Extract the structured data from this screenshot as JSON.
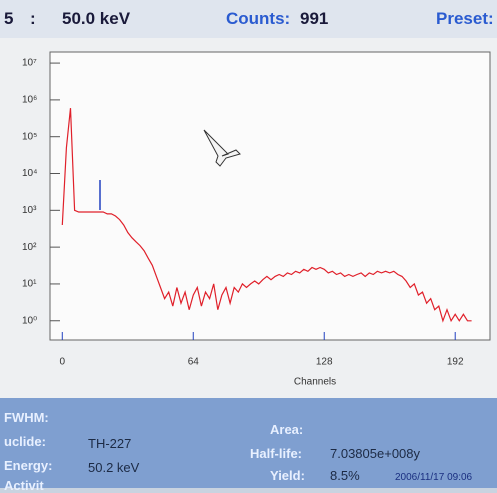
{
  "header": {
    "channel": "5",
    "separator": ":",
    "energy": "50.0 keV",
    "counts_label": "Counts:",
    "counts": "991",
    "preset": "Preset:"
  },
  "chart_data": {
    "type": "line",
    "xlabel": "Channels",
    "color": "#e0202a",
    "log_y": true,
    "x": [
      0,
      2,
      4,
      6,
      8,
      10,
      12,
      14,
      16,
      18,
      20,
      22,
      24,
      26,
      28,
      30,
      32,
      34,
      36,
      38,
      40,
      42,
      44,
      46,
      48,
      50,
      52,
      54,
      56,
      58,
      60,
      62,
      64,
      66,
      68,
      70,
      72,
      74,
      76,
      78,
      80,
      82,
      84,
      86,
      88,
      90,
      92,
      94,
      96,
      98,
      100,
      102,
      104,
      106,
      108,
      110,
      112,
      114,
      116,
      118,
      120,
      122,
      124,
      126,
      128,
      130,
      132,
      134,
      136,
      138,
      140,
      142,
      144,
      146,
      148,
      150,
      152,
      154,
      156,
      158,
      160,
      162,
      164,
      166,
      168,
      170,
      172,
      174,
      176,
      178,
      180,
      182,
      184,
      186,
      188,
      190,
      192,
      194,
      196,
      198,
      200
    ],
    "values": [
      400,
      50000,
      600000,
      1000,
      900,
      900,
      900,
      900,
      900,
      900,
      900,
      800,
      800,
      700,
      560,
      400,
      250,
      180,
      140,
      110,
      80,
      50,
      32,
      16,
      8,
      4,
      6,
      2.5,
      8,
      3,
      6,
      2,
      5,
      8,
      2.5,
      6,
      4,
      10,
      2,
      5,
      8,
      3,
      8,
      6,
      10,
      8,
      10,
      12,
      10,
      13,
      16,
      13,
      16,
      18,
      16,
      20,
      18,
      22,
      20,
      25,
      22,
      28,
      25,
      28,
      25,
      20,
      22,
      18,
      20,
      16,
      18,
      16,
      18,
      20,
      16,
      20,
      18,
      22,
      20,
      22,
      20,
      22,
      18,
      16,
      12,
      8,
      10,
      5,
      6,
      3,
      4,
      2,
      2.5,
      1,
      2,
      1,
      1.5,
      1,
      1.5,
      1,
      1
    ],
    "xlim": [
      -6,
      209
    ],
    "xticks": [
      0,
      64,
      128,
      192
    ],
    "ylim": [
      0.3,
      20000000
    ],
    "yticks": [
      {
        "value": 1,
        "label": "10⁰"
      },
      {
        "value": 10,
        "label": "10¹"
      },
      {
        "value": 100,
        "label": "10²"
      },
      {
        "value": 1000,
        "label": "10³"
      },
      {
        "value": 10000,
        "label": "10⁴"
      },
      {
        "value": 100000,
        "label": "10⁵"
      },
      {
        "value": 1000000,
        "label": "10⁶"
      },
      {
        "value": 10000000,
        "label": "10⁷"
      }
    ]
  },
  "info": {
    "fwhm_label": "FWHM:",
    "nuclide_label": "uclide:",
    "nuclide": "TH-227",
    "energy_label": "Energy:",
    "energy": "50.2 keV",
    "activity_label": "Activit",
    "area_label": "Area:",
    "half_life_label": "Half-life:",
    "half_life": "7.03805e+008y",
    "yield_label": "Yield:",
    "yield": "8.5%",
    "timestamp": "2006/11/17 09:06"
  }
}
